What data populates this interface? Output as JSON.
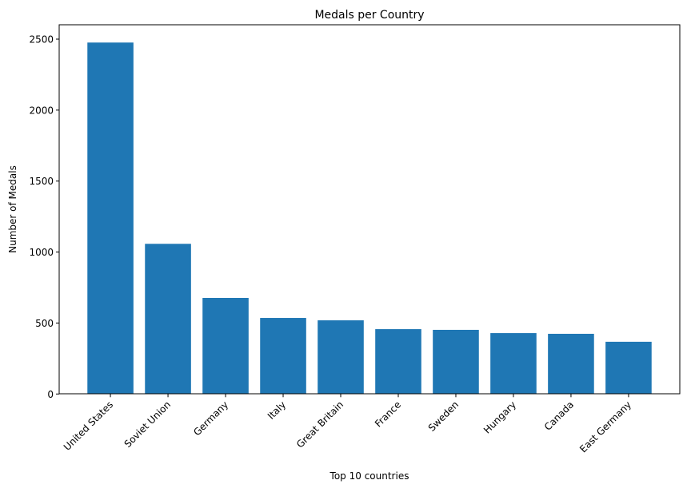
{
  "chart_data": {
    "type": "bar",
    "title": "Medals per Country",
    "xlabel": "Top 10 countries",
    "ylabel": "Number of Medals",
    "categories": [
      "United States",
      "Soviet Union",
      "Germany",
      "Italy",
      "Great Britain",
      "France",
      "Sweden",
      "Hungary",
      "Canada",
      "East Germany"
    ],
    "values": [
      2476,
      1058,
      677,
      536,
      519,
      457,
      452,
      429,
      424,
      368
    ],
    "ylim": [
      0,
      2600
    ],
    "yticks": [
      0,
      500,
      1000,
      1500,
      2000,
      2500
    ],
    "grid": false,
    "bar_color": "#1f77b4"
  }
}
